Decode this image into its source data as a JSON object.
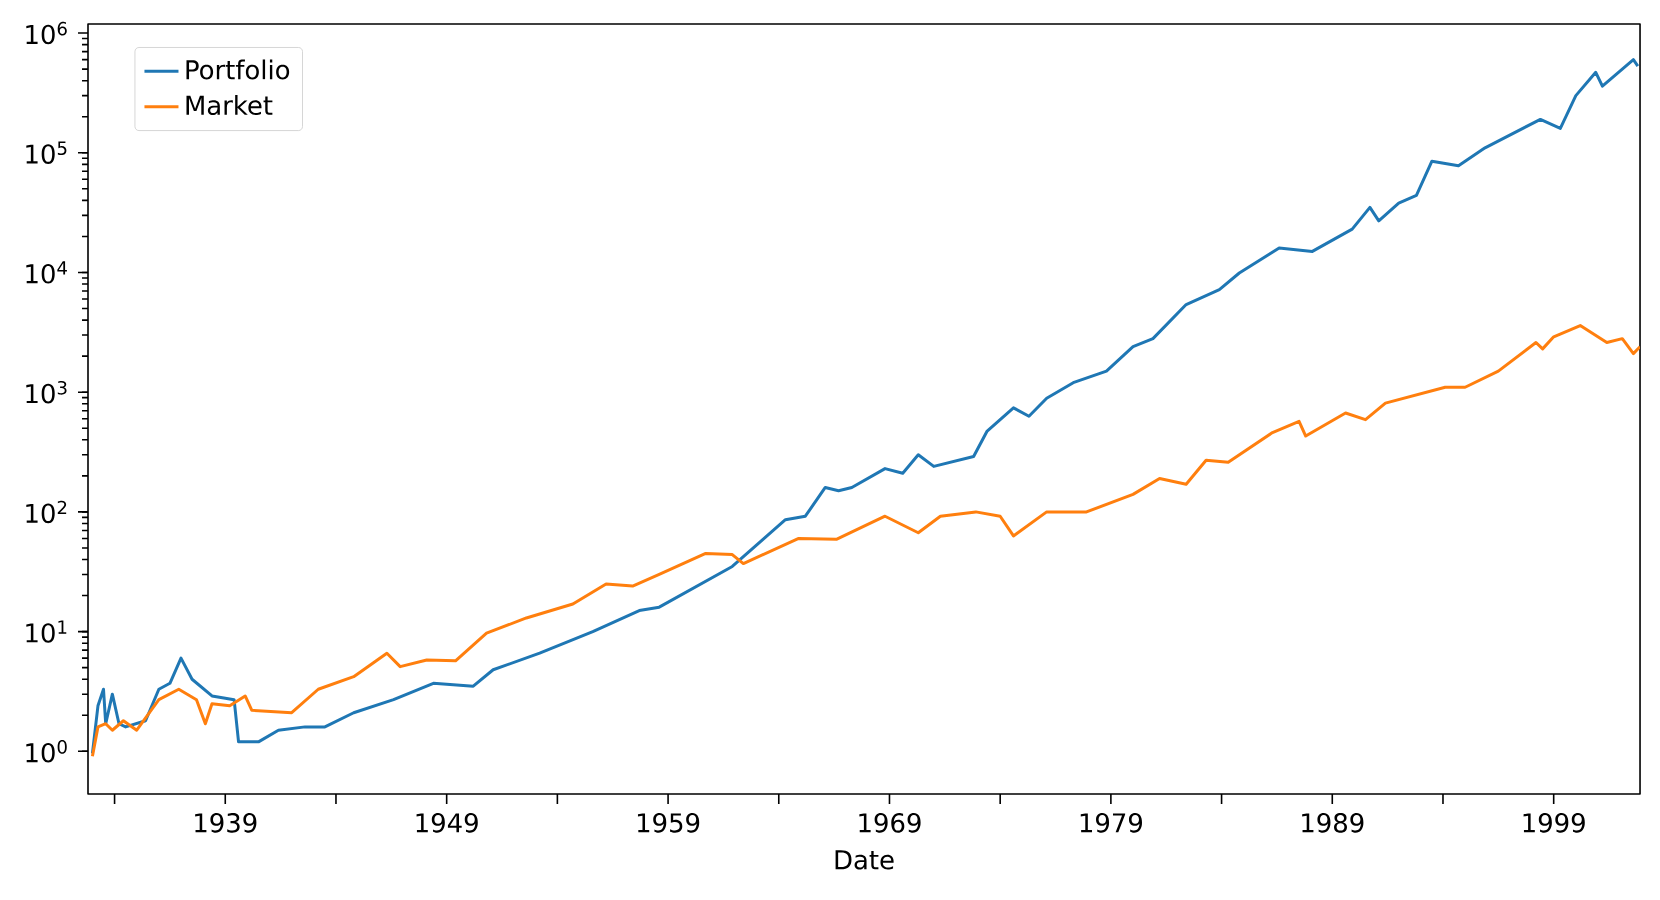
{
  "chart_data": {
    "type": "line",
    "xlabel": "Date",
    "log": "y",
    "legend": "top left",
    "grid": false,
    "xlim": [
      1932.8,
      2002.9
    ],
    "ylim": [
      0.44,
      1190000
    ],
    "xticks": [
      {
        "value": 1934,
        "label": null
      },
      1939,
      {
        "value": 1944,
        "label": null
      },
      1949,
      {
        "value": 1954,
        "label": null
      },
      1959,
      {
        "value": 1964,
        "label": null
      },
      1969,
      {
        "value": 1974,
        "label": null
      },
      1979,
      {
        "value": 1984,
        "label": null
      },
      1989,
      {
        "value": 1994,
        "label": null
      },
      1999
    ],
    "yticks": [
      {
        "value": 1,
        "label": "10$^{0}$"
      },
      {
        "value": 10,
        "label": "10$^{1}$"
      },
      {
        "value": 100,
        "label": "10$^{2}$"
      },
      {
        "value": 1000,
        "label": "10$^{3}$"
      },
      {
        "value": 10000,
        "label": "10$^{4}$"
      },
      {
        "value": 100000,
        "label": "10$^{5}$"
      },
      {
        "value": 1000000,
        "label": "10$^{6}$"
      }
    ],
    "series": [
      {
        "name": "Portfolio",
        "color": "#1f77b4",
        "x": [
          1933.0,
          1933.25,
          1933.5,
          1933.6,
          1933.9,
          1934.2,
          1934.5,
          1935.4,
          1936.0,
          1936.5,
          1937.0,
          1937.5,
          1938.4,
          1939.4,
          1939.6,
          1940.5,
          1941.4,
          1942.6,
          1943.5,
          1944.8,
          1946.6,
          1948.4,
          1950.2,
          1951.1,
          1953.2,
          1955.6,
          1957.7,
          1958.6,
          1961.9,
          1964.3,
          1965.2,
          1966.1,
          1966.7,
          1967.3,
          1968.8,
          1969.6,
          1970.3,
          1971.0,
          1972.8,
          1973.4,
          1974.6,
          1975.3,
          1976.1,
          1977.3,
          1978.8,
          1980.0,
          1980.9,
          1982.4,
          1983.9,
          1984.8,
          1986.6,
          1988.1,
          1989.9,
          1990.7,
          1991.1,
          1992.0,
          1992.8,
          1993.5,
          1994.7,
          1995.9,
          1998.4,
          1999.3,
          2000.0,
          2000.9,
          2001.2,
          2002.6,
          2002.8
        ],
        "values": [
          0.96,
          2.4,
          3.3,
          1.7,
          3.0,
          1.7,
          1.6,
          1.8,
          3.3,
          3.7,
          6.0,
          4.0,
          2.9,
          2.7,
          1.2,
          1.2,
          1.5,
          1.6,
          1.6,
          2.1,
          2.7,
          3.7,
          3.5,
          4.8,
          6.6,
          10,
          15,
          16,
          35,
          86,
          92,
          160,
          150,
          160,
          230,
          210,
          300,
          240,
          290,
          470,
          740,
          630,
          890,
          1200,
          1500,
          2400,
          2800,
          5400,
          7200,
          9900,
          16000,
          15000,
          23000,
          35000,
          27000,
          38000,
          44000,
          85000,
          78000,
          110000,
          190000,
          160000,
          300000,
          470000,
          360000,
          600000,
          530000
        ]
      },
      {
        "name": "Market",
        "color": "#ff7f0e",
        "x": [
          1933.0,
          1933.25,
          1933.6,
          1933.9,
          1934.4,
          1935.0,
          1936.0,
          1936.9,
          1937.7,
          1938.1,
          1938.4,
          1939.2,
          1939.9,
          1940.2,
          1942.0,
          1943.2,
          1944.8,
          1946.3,
          1946.9,
          1948.1,
          1949.4,
          1950.8,
          1952.6,
          1954.7,
          1956.2,
          1957.4,
          1958.6,
          1960.7,
          1961.9,
          1962.4,
          1964.9,
          1966.6,
          1968.8,
          1970.3,
          1971.3,
          1972.9,
          1974.0,
          1974.6,
          1976.1,
          1977.9,
          1980.0,
          1981.2,
          1982.4,
          1983.3,
          1984.3,
          1986.3,
          1987.5,
          1987.8,
          1989.6,
          1990.5,
          1991.4,
          1994.1,
          1995.0,
          1996.5,
          1998.2,
          1998.5,
          1999.0,
          2000.2,
          2001.4,
          2002.1,
          2002.6,
          2002.9
        ],
        "values": [
          0.91,
          1.6,
          1.7,
          1.5,
          1.8,
          1.5,
          2.7,
          3.3,
          2.7,
          1.7,
          2.5,
          2.4,
          2.9,
          2.2,
          2.1,
          3.3,
          4.2,
          6.6,
          5.1,
          5.8,
          5.7,
          9.7,
          13,
          17,
          25,
          24,
          30,
          45,
          44,
          37,
          60,
          59,
          92,
          67,
          92,
          100,
          92,
          63,
          100,
          100,
          140,
          190,
          170,
          270,
          260,
          460,
          570,
          430,
          670,
          590,
          810,
          1100,
          1100,
          1500,
          2600,
          2300,
          2900,
          3600,
          2600,
          2800,
          2100,
          2400
        ]
      }
    ]
  }
}
